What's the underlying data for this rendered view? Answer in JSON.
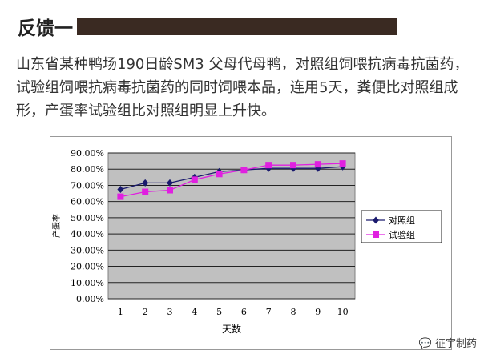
{
  "header": {
    "title": "反馈一"
  },
  "paragraph": "山东省某种鸭场190日龄SM3 父母代母鸭，对照组饲喂抗病毒抗菌药，试验组饲喂抗病毒抗菌药的同时饲喂本品，连用5天，粪便比对照组成形，产蛋率试验组比对照组明显上升快。",
  "watermark": "征宇制药",
  "chart_data": {
    "type": "line",
    "title": "",
    "xlabel": "天数",
    "ylabel": "产蛋率",
    "categories": [
      "1",
      "2",
      "3",
      "4",
      "5",
      "6",
      "7",
      "8",
      "9",
      "10"
    ],
    "yticks": [
      "0.00%",
      "10.00%",
      "20.00%",
      "30.00%",
      "40.00%",
      "50.00%",
      "60.00%",
      "70.00%",
      "80.00%",
      "90.00%"
    ],
    "ylim": [
      0,
      90
    ],
    "grid": true,
    "legend_position": "right",
    "series": [
      {
        "name": "对照组",
        "color": "#1a1a6e",
        "marker": "diamond",
        "values": [
          67.5,
          71.5,
          71.5,
          75,
          78.5,
          79.5,
          80.5,
          80.5,
          80.5,
          81.5
        ]
      },
      {
        "name": "试验组",
        "color": "#e020e0",
        "marker": "square",
        "values": [
          63,
          66,
          67,
          73.5,
          77,
          79.5,
          82.5,
          82.5,
          83,
          83.5
        ]
      }
    ]
  }
}
